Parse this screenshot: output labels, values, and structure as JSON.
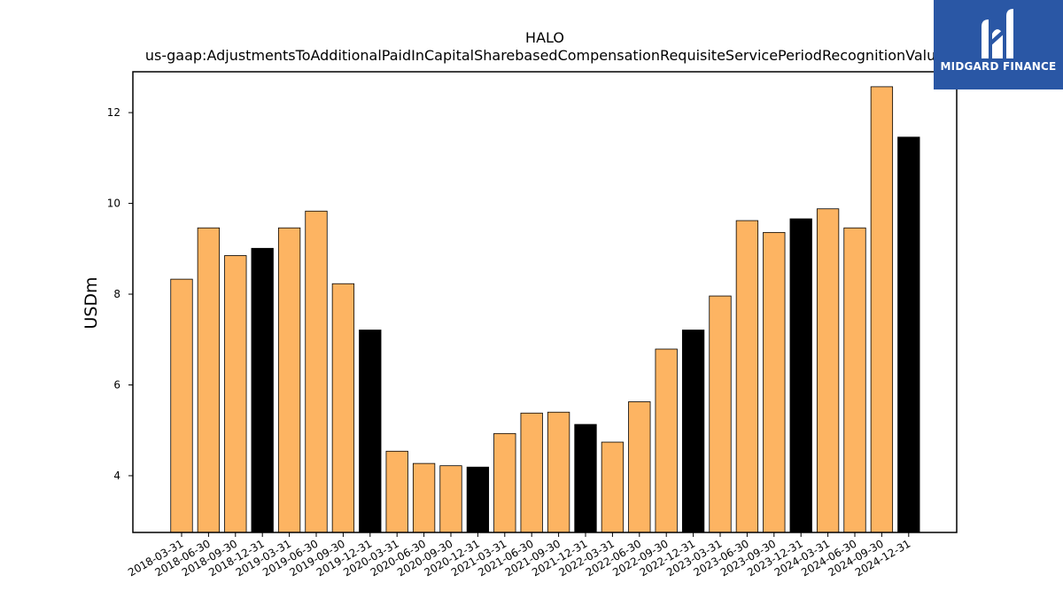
{
  "chart_data": {
    "type": "bar",
    "title": "HALO",
    "subtitle": "us-gaap:AdjustmentsToAdditionalPaidInCapitalSharebasedCompensationRequisiteServicePeriodRecognitionValue",
    "xlabel": "",
    "ylabel": "USDm",
    "ylim": [
      2.75,
      12.9
    ],
    "yticks": [
      4,
      6,
      8,
      10,
      12
    ],
    "grid": false,
    "categories": [
      "2018-03-31",
      "2018-06-30",
      "2018-09-30",
      "2018-12-31",
      "2019-03-31",
      "2019-06-30",
      "2019-09-30",
      "2019-12-31",
      "2020-03-31",
      "2020-06-30",
      "2020-09-30",
      "2020-12-31",
      "2021-03-31",
      "2021-06-30",
      "2021-09-30",
      "2021-12-31",
      "2022-03-31",
      "2022-06-30",
      "2022-09-30",
      "2022-12-31",
      "2023-03-31",
      "2023-06-30",
      "2023-09-30",
      "2023-12-31",
      "2024-03-31",
      "2024-06-30",
      "2024-09-30",
      "2024-12-31"
    ],
    "values": [
      8.33,
      9.46,
      8.85,
      9.01,
      9.46,
      9.83,
      8.23,
      7.21,
      4.54,
      4.27,
      4.22,
      4.19,
      4.93,
      5.38,
      5.4,
      5.13,
      4.74,
      5.63,
      6.79,
      7.21,
      7.96,
      9.62,
      9.36,
      9.66,
      9.88,
      9.46,
      12.57,
      11.46
    ],
    "colors": {
      "quarter": "#fdb462",
      "year_end": "#000000",
      "edge": "#000000"
    }
  },
  "logo": {
    "text": "MIDGARD FINANCE",
    "background": "#2a57a5"
  }
}
